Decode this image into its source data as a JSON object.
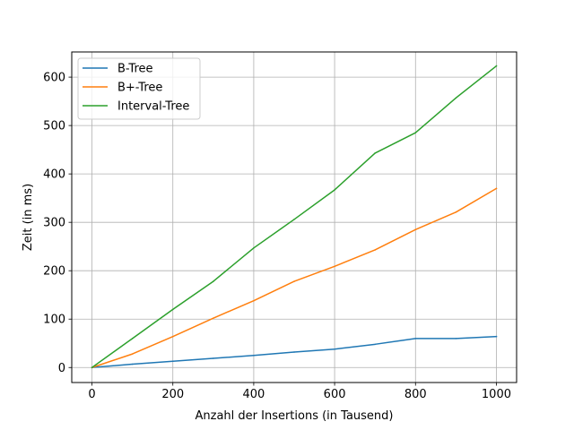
{
  "chart_data": {
    "type": "line",
    "title": "",
    "xlabel": "Anzahl der Insertions (in Tausend)",
    "ylabel": "Zeit (in ms)",
    "xlim": [
      -50,
      1050
    ],
    "ylim": [
      -31,
      652
    ],
    "xticks": [
      0,
      200,
      400,
      600,
      800,
      1000
    ],
    "yticks": [
      0,
      100,
      200,
      300,
      400,
      500,
      600
    ],
    "grid": true,
    "legend_position": "top-left",
    "x": [
      0,
      100,
      200,
      300,
      400,
      500,
      600,
      700,
      800,
      900,
      1000
    ],
    "series": [
      {
        "name": "B-Tree",
        "color": "#1f77b4",
        "values": [
          0,
          7,
          13,
          19,
          25,
          32,
          38,
          48,
          60,
          60,
          64
        ]
      },
      {
        "name": "B+-Tree",
        "color": "#ff7f0e",
        "values": [
          0,
          28,
          64,
          102,
          138,
          178,
          209,
          243,
          285,
          321,
          370
        ]
      },
      {
        "name": "Interval-Tree",
        "color": "#2ca02c",
        "values": [
          0,
          60,
          120,
          178,
          247,
          306,
          367,
          443,
          485,
          557,
          623
        ]
      }
    ]
  }
}
